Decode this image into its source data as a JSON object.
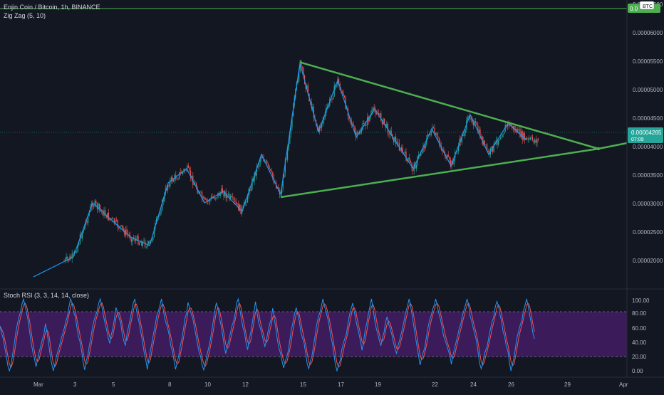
{
  "header": {
    "symbol_title": "Enjin Coin / Bitcoin, 1h, BINANCE",
    "indicator_zigzag": "Zig Zag (5, 10)"
  },
  "price_axis": {
    "labels": [
      "0.00006500",
      "0.00006000",
      "0.00005500",
      "0.00005000",
      "0.00004500",
      "0.00004000",
      "0.00003500",
      "0.00003000",
      "0.00002500",
      "0.00002000"
    ],
    "top_badge_text": "0.0",
    "top_badge_currency": "BTC",
    "current_price": "0.00004265",
    "countdown": "07:09"
  },
  "rsi": {
    "title": "Stoch RSI (3, 3, 14, 14, close)",
    "axis_labels": [
      "100.00",
      "80.00",
      "60.00",
      "40.00",
      "20.00",
      "0.00"
    ]
  },
  "time_axis": {
    "labels": [
      "Mar",
      "3",
      "5",
      "8",
      "10",
      "12",
      "15",
      "17",
      "19",
      "22",
      "24",
      "26",
      "29",
      "Apr"
    ]
  },
  "colors": {
    "background": "#131722",
    "candle_up": "#26a69a",
    "candle_down": "#ef5350",
    "zigzag": "#2196f3",
    "trendline": "#4caf50",
    "stoch_k": "#2196f3",
    "stoch_d": "#ef5350",
    "rsi_band": "#4a1e6e",
    "price_badge": "#26a69a"
  },
  "chart_data": {
    "type": "line",
    "ylim": [
      1.75e-05,
      6.65e-05
    ],
    "zigzag": [
      [
        "Mar 1",
        1.75e-05
      ],
      [
        "Mar 3",
        2.1e-05
      ],
      [
        "Mar 4",
        3.05e-05
      ],
      [
        "Mar 6",
        2.45e-05
      ],
      [
        "Mar 7",
        2.3e-05
      ],
      [
        "Mar 8",
        3.4e-05
      ],
      [
        "Mar 9",
        3.65e-05
      ],
      [
        "Mar 10",
        3.05e-05
      ],
      [
        "Mar 11",
        3.25e-05
      ],
      [
        "Mar 12",
        2.9e-05
      ],
      [
        "Mar 13",
        3.9e-05
      ],
      [
        "Mar 14",
        3.2e-05
      ],
      [
        "Mar 15",
        5.5e-05
      ],
      [
        "Mar 16",
        4.3e-05
      ],
      [
        "Mar 17",
        5.2e-05
      ],
      [
        "Mar 18",
        4.2e-05
      ],
      [
        "Mar 19",
        4.7e-05
      ],
      [
        "Mar 21",
        3.65e-05
      ],
      [
        "Mar 22",
        4.35e-05
      ],
      [
        "Mar 23",
        3.7e-05
      ],
      [
        "Mar 24",
        4.6e-05
      ],
      [
        "Mar 25",
        3.9e-05
      ],
      [
        "Mar 26",
        4.45e-05
      ],
      [
        "Mar 27",
        4.15e-05
      ]
    ],
    "trendlines": [
      {
        "from": [
          "Mar 15",
          5.52e-05
        ],
        "to": [
          "Mar 30",
          4e-05
        ]
      },
      {
        "from": [
          "Mar 14",
          3.15e-05
        ],
        "to": [
          "Mar 30",
          4e-05
        ]
      }
    ],
    "stoch_rsi": {
      "upper_band": 80,
      "lower_band": 20,
      "ylim": [
        0,
        100
      ]
    }
  }
}
